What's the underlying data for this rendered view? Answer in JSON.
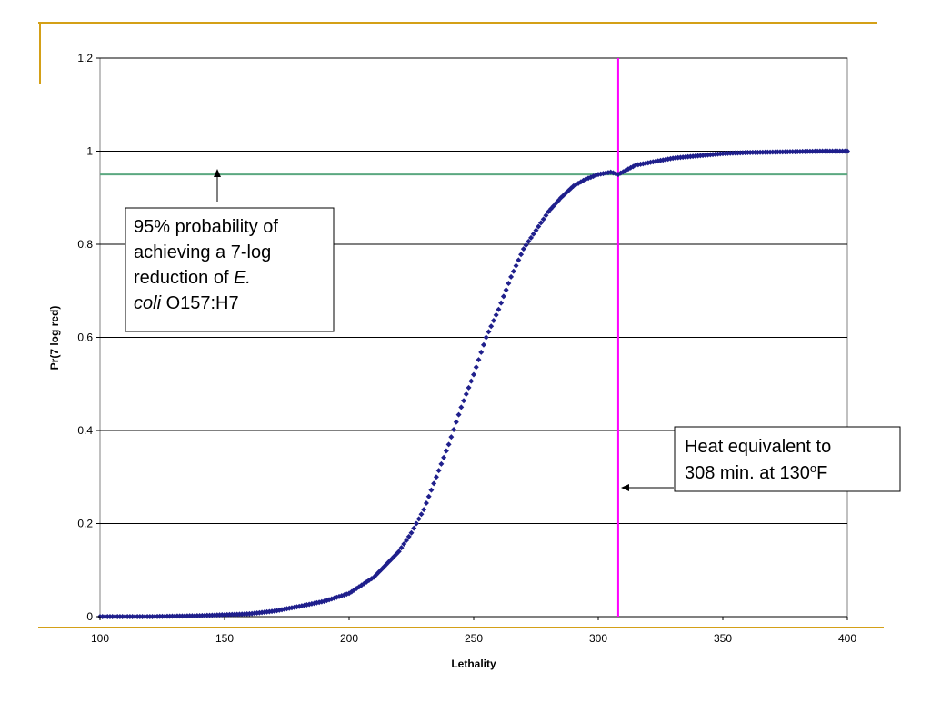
{
  "slide": {
    "accent_color": "#D4A017"
  },
  "chart_data": {
    "type": "scatter",
    "title": "",
    "xlabel": "Lethality",
    "ylabel": "Pr(7 log red)",
    "xlim": [
      100,
      400
    ],
    "ylim": [
      0,
      1.2
    ],
    "x_ticks": [
      100,
      150,
      200,
      250,
      300,
      350,
      400
    ],
    "y_ticks": [
      0,
      0.2,
      0.4,
      0.6,
      0.8,
      1,
      1.2
    ],
    "x_tick_labels": [
      "100",
      "150",
      "200",
      "250",
      "300",
      "350",
      "400"
    ],
    "y_tick_labels": [
      "0",
      "0.2",
      "0.4",
      "0.6",
      "0.8",
      "1",
      "1.2"
    ],
    "grid": "horizontal",
    "legend": "none",
    "series": [
      {
        "marker": "diamond",
        "color": "#1F1F8C",
        "x": [
          100,
          110,
          120,
          130,
          140,
          150,
          160,
          170,
          180,
          190,
          200,
          210,
          220,
          225,
          230,
          235,
          240,
          245,
          250,
          255,
          260,
          265,
          270,
          275,
          280,
          285,
          290,
          295,
          300,
          305,
          308,
          315,
          320,
          330,
          340,
          350,
          360,
          370,
          380,
          390,
          400
        ],
        "values": [
          0.0,
          0.0,
          0.0,
          0.001,
          0.002,
          0.004,
          0.006,
          0.012,
          0.022,
          0.033,
          0.05,
          0.085,
          0.14,
          0.18,
          0.23,
          0.3,
          0.37,
          0.45,
          0.52,
          0.6,
          0.66,
          0.73,
          0.79,
          0.83,
          0.87,
          0.9,
          0.925,
          0.94,
          0.95,
          0.955,
          0.95,
          0.97,
          0.975,
          0.985,
          0.99,
          0.995,
          0.997,
          0.998,
          0.999,
          1.0,
          1.0
        ]
      }
    ],
    "reference_lines": [
      {
        "orientation": "horizontal",
        "value": 0.95,
        "color": "#5BA880"
      },
      {
        "orientation": "vertical",
        "value": 308,
        "color": "#FF00FF"
      }
    ],
    "annotations": [
      {
        "lines": [
          [
            {
              "text": "95% probability of",
              "italic": false
            }
          ],
          [
            {
              "text": "achieving a 7-log",
              "italic": false
            }
          ],
          [
            {
              "text": "reduction of ",
              "italic": false
            },
            {
              "text": "E.",
              "italic": true
            }
          ],
          [
            {
              "text": "coli",
              "italic": true
            },
            {
              "text": " O157:H7",
              "italic": false
            }
          ]
        ]
      },
      {
        "lines": [
          [
            {
              "text": "Heat equivalent to",
              "italic": false
            }
          ],
          [
            {
              "text": "308 min. at 130",
              "italic": false
            },
            {
              "text": "o",
              "italic": false,
              "superscript": true
            },
            {
              "text": "F",
              "italic": false
            }
          ]
        ]
      }
    ]
  }
}
